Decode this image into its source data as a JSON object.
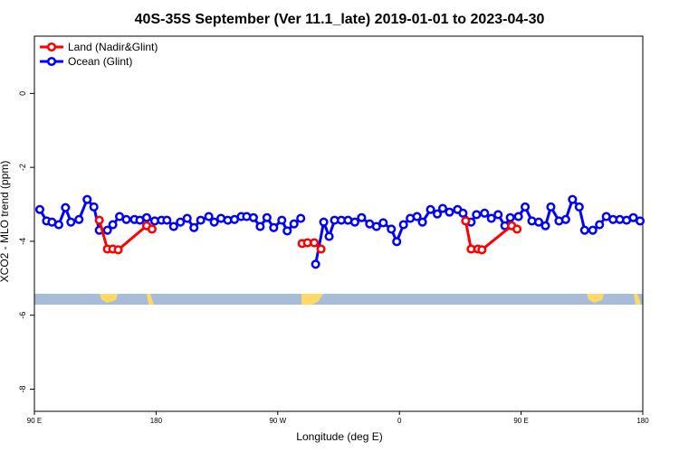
{
  "chart_data": {
    "type": "line",
    "title": "40S-35S September (Ver 11.1_late)   2019-01-01 to 2023-04-30",
    "x_label": "Longitude (deg E)",
    "y_label": "XCO2 - MLO trend (ppm)",
    "xlim": [
      90,
      540
    ],
    "ylim": [
      -8.6,
      1.55
    ],
    "xticks": [
      {
        "value": 90,
        "label": "90 E"
      },
      180,
      {
        "value": 270,
        "label": "90 W"
      },
      {
        "value": 360,
        "label": "0"
      },
      {
        "value": 450,
        "label": "90 E"
      },
      {
        "value": 540,
        "label": "180"
      }
    ],
    "yticks": [
      -8,
      -6,
      -4,
      -2,
      0
    ],
    "legend": "top-left",
    "series": [
      {
        "name": "Land (Nadir&Glint)",
        "color": "#ff0000",
        "x": [
          138,
          144,
          148,
          152,
          173,
          177,
          null,
          288,
          292,
          297,
          302,
          null,
          409,
          413,
          418,
          421,
          443,
          447
        ],
        "values": [
          -3.43,
          -4.21,
          -4.21,
          -4.23,
          -3.58,
          -3.67,
          null,
          -4.06,
          -4.04,
          -4.04,
          -4.21,
          null,
          -3.45,
          -4.21,
          -4.21,
          -4.23,
          -3.58,
          -3.67
        ]
      },
      {
        "name": "Ocean (Glint)",
        "color": "#0000ff",
        "x": [
          94,
          99,
          103,
          108,
          113,
          117,
          123,
          129,
          134,
          138,
          144,
          148,
          153,
          158,
          164,
          168,
          173,
          179,
          184,
          188,
          193,
          198,
          203,
          208,
          213,
          219,
          223,
          228,
          233,
          238,
          243,
          247,
          252,
          257,
          262,
          267,
          273,
          277,
          282,
          287,
          null,
          298,
          304,
          308,
          312,
          317,
          322,
          327,
          332,
          338,
          343,
          348,
          354,
          358,
          363,
          368,
          373,
          377,
          383,
          388,
          392,
          397,
          403,
          407,
          413,
          417,
          423,
          428,
          433,
          438,
          442,
          448,
          453,
          458,
          463,
          468,
          472,
          478,
          483,
          488,
          493,
          497,
          503,
          508,
          513,
          518,
          523,
          528,
          533,
          538
        ],
        "values": [
          -3.14,
          -3.45,
          -3.48,
          -3.55,
          -3.09,
          -3.48,
          -3.41,
          -2.87,
          -3.07,
          -3.7,
          -3.7,
          -3.55,
          -3.33,
          -3.41,
          -3.41,
          -3.43,
          -3.36,
          -3.45,
          -3.43,
          -3.43,
          -3.6,
          -3.48,
          -3.38,
          -3.63,
          -3.43,
          -3.33,
          -3.48,
          -3.38,
          -3.43,
          -3.41,
          -3.33,
          -3.33,
          -3.36,
          -3.6,
          -3.36,
          -3.63,
          -3.43,
          -3.72,
          -3.53,
          -3.38,
          null,
          -4.62,
          -3.48,
          -3.87,
          -3.43,
          -3.43,
          -3.43,
          -3.48,
          -3.36,
          -3.53,
          -3.6,
          -3.5,
          -3.67,
          -4.01,
          -3.55,
          -3.38,
          -3.33,
          -3.48,
          -3.14,
          -3.26,
          -3.11,
          -3.21,
          -3.14,
          -3.24,
          -3.48,
          -3.28,
          -3.24,
          -3.38,
          -3.28,
          -3.58,
          -3.36,
          -3.33,
          -3.07,
          -3.45,
          -3.48,
          -3.58,
          -3.07,
          -3.45,
          -3.41,
          -2.87,
          -3.07,
          -3.7,
          -3.7,
          -3.55,
          -3.33,
          -3.41,
          -3.41,
          -3.43,
          -3.36,
          -3.45
        ]
      }
    ]
  }
}
